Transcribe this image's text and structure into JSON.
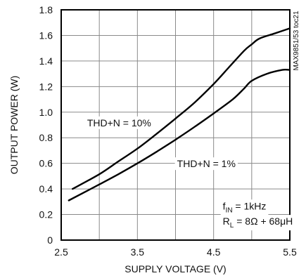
{
  "chart_data": {
    "type": "line",
    "title": "",
    "xlabel": "SUPPLY VOLTAGE (V)",
    "ylabel": "OUTPUT POWER (W)",
    "xlim": [
      2.5,
      5.5
    ],
    "ylim": [
      0,
      1.8
    ],
    "xticks": [
      2.5,
      3.5,
      4.5,
      5.5
    ],
    "xtick_labels": [
      "2.5",
      "3.5",
      "4.5",
      "5.5"
    ],
    "yticks": [
      0,
      0.2,
      0.4,
      0.6,
      0.8,
      1.0,
      1.2,
      1.4,
      1.6,
      1.8
    ],
    "ytick_labels": [
      "0",
      "0.2",
      "0.4",
      "0.6",
      "0.8",
      "1.0",
      "1.2",
      "1.4",
      "1.6",
      "1.8"
    ],
    "grid": true,
    "side_label": "MAX9851/53 toc21",
    "series": [
      {
        "name": "THD+N = 10%",
        "x": [
          2.65,
          3.0,
          3.25,
          3.5,
          3.75,
          4.0,
          4.25,
          4.5,
          4.7,
          4.9,
          5.0,
          5.1,
          5.3,
          5.5
        ],
        "y": [
          0.4,
          0.515,
          0.615,
          0.715,
          0.83,
          0.95,
          1.075,
          1.22,
          1.35,
          1.48,
          1.53,
          1.575,
          1.615,
          1.655
        ]
      },
      {
        "name": "THD+N = 1%",
        "x": [
          2.6,
          3.0,
          3.25,
          3.5,
          3.75,
          4.0,
          4.25,
          4.5,
          4.75,
          4.9,
          5.0,
          5.2,
          5.4,
          5.5
        ],
        "y": [
          0.31,
          0.435,
          0.515,
          0.6,
          0.69,
          0.785,
          0.885,
          0.99,
          1.1,
          1.185,
          1.245,
          1.3,
          1.33,
          1.33
        ]
      }
    ],
    "annotations": [
      {
        "text": "THD+N = 10%",
        "x": 2.84,
        "y": 0.89
      },
      {
        "text": "THD+N = 1%",
        "x": 4.02,
        "y": 0.57
      },
      {
        "text": "f",
        "sub": "IN",
        "rest": " = 1kHz",
        "x": 4.62,
        "y": 0.24
      },
      {
        "text": "R",
        "sub": "L",
        "rest": " = 8Ω + 68μH",
        "x": 4.62,
        "y": 0.12
      }
    ]
  }
}
